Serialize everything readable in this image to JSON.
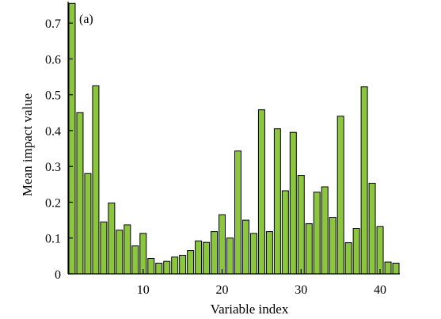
{
  "chart_data": {
    "type": "bar",
    "title": "",
    "panel_label": "(a)",
    "xlabel": "Variable index",
    "ylabel": "Mean impact value",
    "x": [
      1,
      2,
      3,
      4,
      5,
      6,
      7,
      8,
      9,
      10,
      11,
      12,
      13,
      14,
      15,
      16,
      17,
      18,
      19,
      20,
      21,
      22,
      23,
      24,
      25,
      26,
      27,
      28,
      29,
      30,
      31,
      32,
      33,
      34,
      35,
      36,
      37,
      38,
      39,
      40,
      41,
      42
    ],
    "values": [
      0.755,
      0.45,
      0.28,
      0.525,
      0.145,
      0.198,
      0.122,
      0.137,
      0.078,
      0.113,
      0.043,
      0.03,
      0.035,
      0.047,
      0.052,
      0.065,
      0.092,
      0.088,
      0.118,
      0.165,
      0.1,
      0.343,
      0.15,
      0.113,
      0.458,
      0.118,
      0.405,
      0.232,
      0.395,
      0.275,
      0.14,
      0.228,
      0.243,
      0.158,
      0.44,
      0.087,
      0.127,
      0.522,
      0.253,
      0.132,
      0.033,
      0.03
    ],
    "xlim": [
      0.5,
      42.5
    ],
    "ylim": [
      0,
      0.76
    ],
    "x_ticks": [
      10,
      20,
      30,
      40
    ],
    "y_ticks": [
      0,
      0.1,
      0.2,
      0.3,
      0.4,
      0.5,
      0.6,
      0.7
    ],
    "x_tick_labels": [
      "10",
      "20",
      "30",
      "40"
    ],
    "y_tick_labels": [
      "0",
      "0.1",
      "0.2",
      "0.3",
      "0.4",
      "0.5",
      "0.6",
      "0.7"
    ],
    "grid": false,
    "bar_color": "#8cc63f",
    "edge_color": "#000000"
  }
}
